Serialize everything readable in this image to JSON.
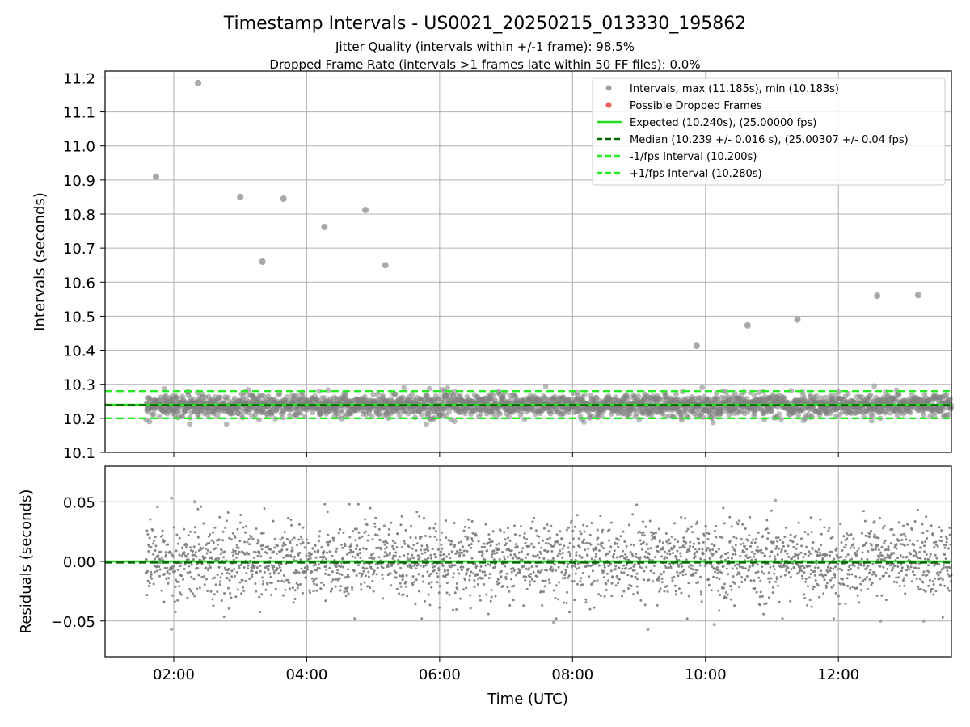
{
  "figure": {
    "title": "Timestamp Intervals - US0021_20250215_013330_195862",
    "subtitle_line1": "Jitter Quality (intervals within +/-1 frame): 98.5%",
    "subtitle_line2": "Dropped Frame Rate (intervals >1 frames late within 50 FF files): 0.0%"
  },
  "chart_data": [
    {
      "type": "scatter",
      "ylabel": "Intervals (seconds)",
      "xlim": [
        "00:58",
        "13:42"
      ],
      "ylim": [
        10.1,
        11.22
      ],
      "yticks": [
        10.1,
        10.2,
        10.3,
        10.4,
        10.5,
        10.6,
        10.7,
        10.8,
        10.9,
        11.0,
        11.1,
        11.2
      ],
      "ytick_labels": [
        "10.1",
        "10.2",
        "10.3",
        "10.4",
        "10.5",
        "10.6",
        "10.7",
        "10.8",
        "10.9",
        "11.0",
        "11.1",
        "11.2"
      ],
      "grid": true,
      "legend_position": "top-right",
      "legend": [
        {
          "label": "Intervals, max (11.185s), min (10.183s)",
          "kind": "marker",
          "color": "#a0a0a0"
        },
        {
          "label": "Possible Dropped Frames",
          "kind": "marker",
          "color": "#f06060"
        },
        {
          "label": "Expected (10.240s), (25.00000 fps)",
          "kind": "line",
          "color": "#22dd22",
          "dash": "solid"
        },
        {
          "label": "Median (10.239 +/- 0.016 s), (25.00307 +/- 0.04 fps)",
          "kind": "line",
          "color": "#006400",
          "dash": "dashed"
        },
        {
          "label": "-1/fps Interval (10.200s)",
          "kind": "line",
          "color": "#22ee22",
          "dash": "dashed"
        },
        {
          "label": "+1/fps Interval (10.280s)",
          "kind": "line",
          "color": "#22ee22",
          "dash": "dashed"
        }
      ],
      "lines": [
        {
          "name": "expected",
          "y": 10.24,
          "color": "#22dd22",
          "dash": "solid"
        },
        {
          "name": "median",
          "y": 10.239,
          "color": "#006400",
          "dash": "dashed"
        },
        {
          "name": "minus-1-fps",
          "y": 10.2,
          "color": "#22ee22",
          "dash": "dashed"
        },
        {
          "name": "plus-1-fps",
          "y": 10.28,
          "color": "#22ee22",
          "dash": "dashed"
        }
      ],
      "outliers": [
        {
          "x": "01:44",
          "y": 10.91
        },
        {
          "x": "02:22",
          "y": 11.185
        },
        {
          "x": "03:00",
          "y": 10.85
        },
        {
          "x": "03:20",
          "y": 10.66
        },
        {
          "x": "03:39",
          "y": 10.845
        },
        {
          "x": "04:16",
          "y": 10.762
        },
        {
          "x": "04:53",
          "y": 10.812
        },
        {
          "x": "05:11",
          "y": 10.65
        },
        {
          "x": "09:52",
          "y": 10.413
        },
        {
          "x": "10:38",
          "y": 10.473
        },
        {
          "x": "11:23",
          "y": 10.49
        },
        {
          "x": "12:35",
          "y": 10.56
        },
        {
          "x": "13:12",
          "y": 10.562
        }
      ],
      "dense_band": {
        "x_start": "01:35",
        "x_end": "13:42",
        "y_center": 10.239,
        "y_spread": 0.016,
        "y_min": 10.183,
        "y_max": 10.295,
        "color": "#808080"
      }
    },
    {
      "type": "scatter",
      "ylabel": "Residuals (seconds)",
      "xlabel": "Time (UTC)",
      "xlim": [
        "00:58",
        "13:42"
      ],
      "ylim": [
        -0.08,
        0.08
      ],
      "yticks": [
        -0.05,
        0.0,
        0.05
      ],
      "ytick_labels": [
        "−0.05",
        "0.00",
        "0.05"
      ],
      "xticks": [
        "02:00",
        "04:00",
        "06:00",
        "08:00",
        "10:00",
        "12:00"
      ],
      "grid": true,
      "lines": [
        {
          "name": "expected",
          "y": 0.0,
          "color": "#22dd22",
          "dash": "solid"
        },
        {
          "name": "median",
          "y": -0.001,
          "color": "#006400",
          "dash": "dashed"
        }
      ],
      "outliers": [
        {
          "x": "01:58",
          "y": 0.053
        },
        {
          "x": "02:19",
          "y": 0.05
        },
        {
          "x": "11:03",
          "y": 0.051
        },
        {
          "x": "01:58",
          "y": -0.057
        },
        {
          "x": "09:08",
          "y": -0.057
        },
        {
          "x": "10:08",
          "y": -0.053
        },
        {
          "x": "07:43",
          "y": -0.051
        },
        {
          "x": "12:38",
          "y": -0.05
        },
        {
          "x": "13:17",
          "y": -0.05
        }
      ],
      "dense_band": {
        "x_start": "01:35",
        "x_end": "13:42",
        "y_center": 0.0,
        "y_spread": 0.016,
        "y_min": -0.048,
        "y_max": 0.048,
        "color": "#808080"
      }
    }
  ]
}
